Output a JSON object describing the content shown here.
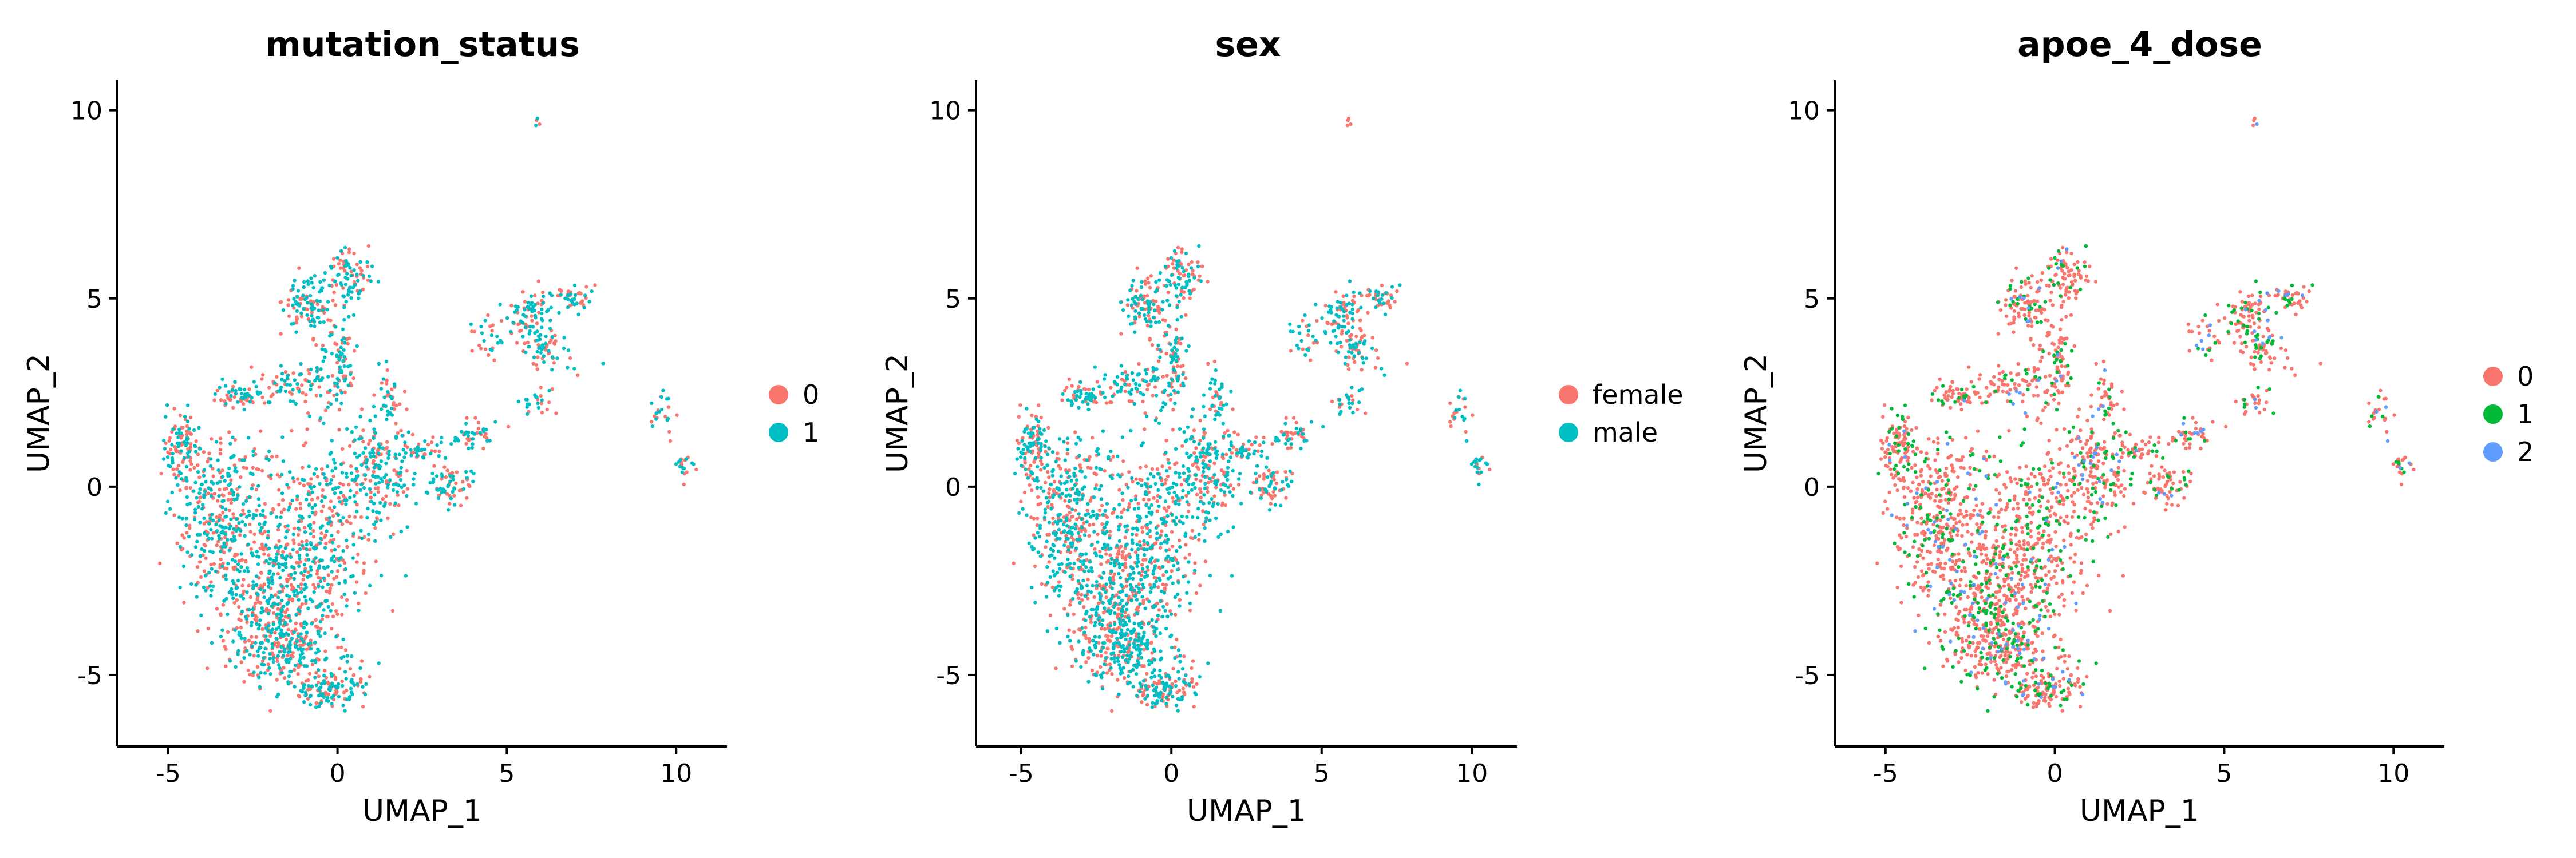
{
  "chart_data": [
    {
      "type": "scatter",
      "title": "mutation_status",
      "xlabel": "UMAP_1",
      "ylabel": "UMAP_2",
      "xlim": [
        -6.5,
        11.5
      ],
      "ylim": [
        -6.9,
        10.8
      ],
      "xticks": [
        -5,
        0,
        5,
        10
      ],
      "xtick_labels": [
        "-5",
        "0",
        "5",
        "10"
      ],
      "yticks": [
        -5,
        0,
        5,
        10
      ],
      "ytick_labels": [
        "-5",
        "0",
        "5",
        "10"
      ],
      "grid": false,
      "legend_position": "right",
      "series": [
        {
          "name": "0",
          "color": "#F8766D"
        },
        {
          "name": "1",
          "color": "#00BFC4"
        }
      ]
    },
    {
      "type": "scatter",
      "title": "sex",
      "xlabel": "UMAP_1",
      "ylabel": "UMAP_2",
      "xlim": [
        -6.5,
        11.5
      ],
      "ylim": [
        -6.9,
        10.8
      ],
      "xticks": [
        -5,
        0,
        5,
        10
      ],
      "xtick_labels": [
        "-5",
        "0",
        "5",
        "10"
      ],
      "yticks": [
        -5,
        0,
        5,
        10
      ],
      "ytick_labels": [
        "-5",
        "0",
        "5",
        "10"
      ],
      "grid": false,
      "legend_position": "right",
      "series": [
        {
          "name": "female",
          "color": "#F8766D"
        },
        {
          "name": "male",
          "color": "#00BFC4"
        }
      ]
    },
    {
      "type": "scatter",
      "title": "apoe_4_dose",
      "xlabel": "UMAP_1",
      "ylabel": "UMAP_2",
      "xlim": [
        -6.5,
        11.5
      ],
      "ylim": [
        -6.9,
        10.8
      ],
      "xticks": [
        -5,
        0,
        5,
        10
      ],
      "xtick_labels": [
        "-5",
        "0",
        "5",
        "10"
      ],
      "yticks": [
        -5,
        0,
        5,
        10
      ],
      "ytick_labels": [
        "-5",
        "0",
        "5",
        "10"
      ],
      "grid": false,
      "legend_position": "right",
      "series": [
        {
          "name": "0",
          "color": "#F8766D"
        },
        {
          "name": "1",
          "color": "#00BA38"
        },
        {
          "name": "2",
          "color": "#619CFF"
        }
      ]
    }
  ]
}
